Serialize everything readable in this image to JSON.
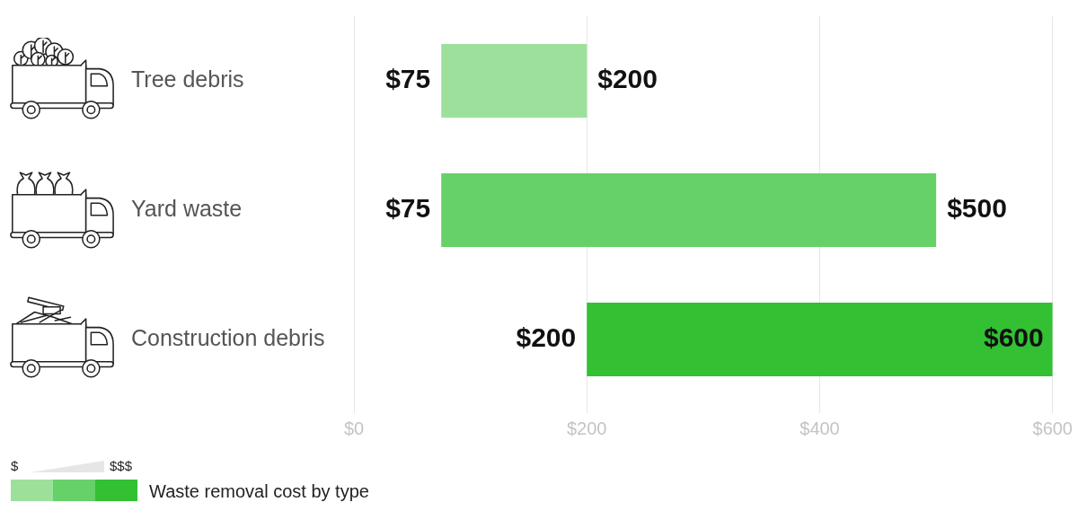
{
  "chart_data": {
    "type": "bar",
    "orientation": "horizontal",
    "title": "Waste removal cost by type",
    "categories": [
      "Tree debris",
      "Yard waste",
      "Construction debris"
    ],
    "base": [
      75,
      75,
      200
    ],
    "values": [
      125,
      425,
      400
    ],
    "colors": [
      "#9ce09c",
      "#66d069",
      "#33c033"
    ],
    "xlim": [
      0,
      600
    ],
    "xticks": [
      {
        "value": 0,
        "label": "$0"
      },
      {
        "value": 200,
        "label": "$200"
      },
      {
        "value": 400,
        "label": "$400"
      },
      {
        "value": 600,
        "label": "$600"
      }
    ],
    "grid": "x",
    "annotations": [
      {
        "text": "$75",
        "x": 75,
        "y": "Tree debris"
      },
      {
        "text": "$200",
        "x": 200,
        "y": "Tree debris"
      },
      {
        "text": "$75",
        "x": 75,
        "y": "Yard waste"
      },
      {
        "text": "$500",
        "x": 500,
        "y": "Yard waste"
      },
      {
        "text": "$200",
        "x": 200,
        "y": "Construction debris"
      },
      {
        "text": "$600",
        "x": 600,
        "y": "Construction debris"
      },
      "$",
      "$$$"
    ]
  }
}
